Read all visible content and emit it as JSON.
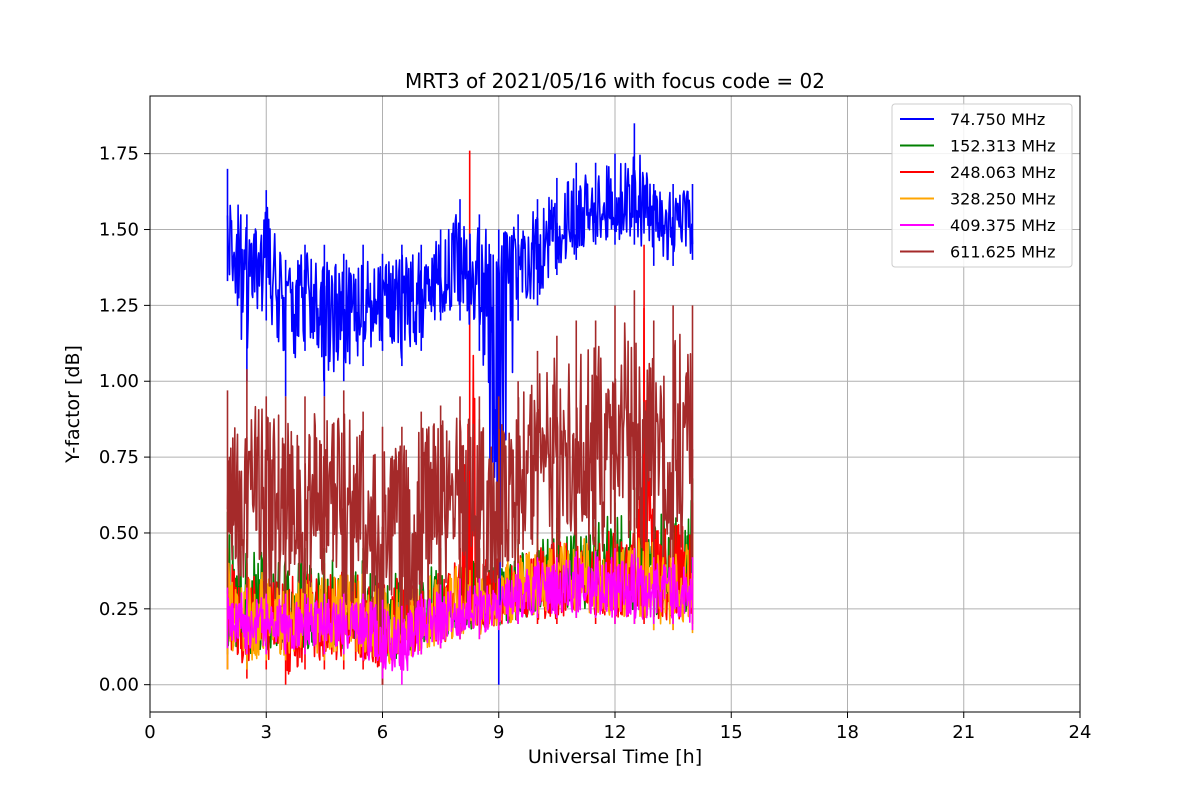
{
  "chart_data": {
    "type": "line",
    "title": "MRT3 of 2021/05/16 with focus code = 02",
    "xlabel": "Universal Time [h]",
    "ylabel": "Y-factor [dB]",
    "xlim": [
      0,
      24
    ],
    "ylim": [
      -0.09,
      1.94
    ],
    "xticks": [
      0,
      3,
      6,
      9,
      12,
      15,
      18,
      21,
      24
    ],
    "xtick_labels": [
      "0",
      "3",
      "6",
      "9",
      "12",
      "15",
      "18",
      "21",
      "24"
    ],
    "yticks": [
      0.0,
      0.25,
      0.5,
      0.75,
      1.0,
      1.25,
      1.5,
      1.75
    ],
    "ytick_labels": [
      "0.00",
      "0.25",
      "0.50",
      "0.75",
      "1.00",
      "1.25",
      "1.50",
      "1.75"
    ],
    "grid": true,
    "legend_position": "top-right",
    "series": [
      {
        "name": " 74.750 MHz",
        "color": "#0000ff",
        "x": [
          2.0,
          2.5,
          3.0,
          3.5,
          4.0,
          4.5,
          5.0,
          5.5,
          6.0,
          6.5,
          7.0,
          7.5,
          8.0,
          8.5,
          9.0,
          9.5,
          10.0,
          10.5,
          11.0,
          11.5,
          12.0,
          12.5,
          13.0,
          13.5,
          14.0
        ],
        "y": [
          1.45,
          1.35,
          1.4,
          1.25,
          1.3,
          1.2,
          1.3,
          1.25,
          1.28,
          1.22,
          1.3,
          1.35,
          1.38,
          1.3,
          1.35,
          1.4,
          1.42,
          1.48,
          1.52,
          1.55,
          1.55,
          1.58,
          1.5,
          1.5,
          1.55
        ],
        "y_min": [
          1.33,
          1.0,
          1.2,
          0.95,
          1.1,
          0.95,
          1.0,
          1.05,
          1.1,
          1.05,
          1.1,
          1.2,
          1.2,
          1.1,
          0.0,
          1.2,
          1.25,
          1.35,
          1.4,
          1.45,
          1.45,
          1.45,
          1.38,
          1.38,
          1.4
        ],
        "y_max": [
          1.7,
          1.55,
          1.63,
          1.4,
          1.45,
          1.45,
          1.42,
          1.45,
          1.42,
          1.45,
          1.45,
          1.5,
          1.6,
          1.55,
          1.5,
          1.55,
          1.6,
          1.67,
          1.72,
          1.72,
          1.75,
          1.85,
          1.65,
          1.65,
          1.65
        ]
      },
      {
        "name": "152.313 MHz",
        "color": "#008000",
        "x": [
          2.0,
          2.5,
          3.0,
          3.5,
          4.0,
          4.5,
          5.0,
          5.5,
          6.0,
          6.5,
          7.0,
          7.5,
          8.0,
          8.5,
          9.0,
          9.5,
          10.0,
          10.5,
          11.0,
          11.5,
          12.0,
          12.5,
          13.0,
          13.5,
          14.0
        ],
        "y": [
          0.3,
          0.22,
          0.2,
          0.2,
          0.2,
          0.2,
          0.22,
          0.22,
          0.2,
          0.2,
          0.22,
          0.25,
          0.25,
          0.25,
          0.25,
          0.28,
          0.3,
          0.32,
          0.33,
          0.35,
          0.35,
          0.35,
          0.35,
          0.35,
          0.38
        ],
        "y_min": [
          0.1,
          0.05,
          0.1,
          0.1,
          0.1,
          0.1,
          0.1,
          0.1,
          0.05,
          0.05,
          0.12,
          0.15,
          0.15,
          0.18,
          0.18,
          0.2,
          0.22,
          0.22,
          0.23,
          0.23,
          0.22,
          0.22,
          0.2,
          0.2,
          0.2
        ],
        "y_max": [
          0.57,
          0.48,
          0.5,
          0.45,
          0.45,
          0.45,
          0.45,
          0.45,
          0.4,
          0.4,
          0.42,
          0.45,
          0.45,
          0.45,
          0.45,
          0.48,
          0.5,
          0.55,
          0.55,
          0.6,
          0.6,
          0.65,
          0.6,
          0.6,
          0.68
        ]
      },
      {
        "name": "248.063 MHz",
        "color": "#ff0000",
        "x": [
          2.0,
          2.5,
          3.0,
          3.5,
          4.0,
          4.5,
          5.0,
          5.5,
          6.0,
          6.5,
          7.0,
          7.5,
          8.0,
          8.25,
          8.5,
          9.0,
          9.5,
          10.0,
          10.5,
          11.0,
          11.5,
          12.0,
          12.5,
          12.75,
          13.0,
          13.5,
          14.0
        ],
        "y": [
          0.3,
          0.2,
          0.2,
          0.18,
          0.2,
          0.2,
          0.22,
          0.2,
          0.18,
          0.18,
          0.2,
          0.22,
          0.25,
          0.3,
          0.25,
          0.25,
          0.28,
          0.3,
          0.32,
          0.33,
          0.33,
          0.33,
          0.35,
          0.35,
          0.35,
          0.35,
          0.38
        ],
        "y_min": [
          0.05,
          0.02,
          0.05,
          0.0,
          0.05,
          0.05,
          0.05,
          0.05,
          0.0,
          0.05,
          0.1,
          0.12,
          0.15,
          0.2,
          0.18,
          0.18,
          0.2,
          0.2,
          0.2,
          0.22,
          0.2,
          0.2,
          0.2,
          0.2,
          0.18,
          0.18,
          0.2
        ],
        "y_max": [
          0.45,
          0.4,
          0.4,
          0.38,
          0.4,
          0.4,
          0.4,
          0.4,
          0.38,
          0.38,
          0.4,
          0.42,
          0.45,
          1.76,
          0.45,
          0.45,
          0.45,
          0.48,
          0.5,
          0.5,
          0.52,
          0.55,
          0.55,
          1.45,
          0.55,
          0.55,
          0.6
        ]
      },
      {
        "name": "328.250 MHz",
        "color": "#ffa500",
        "x": [
          2.0,
          2.5,
          3.0,
          3.5,
          4.0,
          4.5,
          5.0,
          5.5,
          6.0,
          6.5,
          7.0,
          7.5,
          8.0,
          8.5,
          9.0,
          9.5,
          10.0,
          10.5,
          11.0,
          11.5,
          12.0,
          12.5,
          13.0,
          13.5,
          14.0
        ],
        "y": [
          0.25,
          0.2,
          0.2,
          0.18,
          0.2,
          0.2,
          0.2,
          0.2,
          0.18,
          0.18,
          0.2,
          0.22,
          0.25,
          0.25,
          0.25,
          0.28,
          0.3,
          0.32,
          0.33,
          0.33,
          0.33,
          0.33,
          0.32,
          0.32,
          0.35
        ],
        "y_min": [
          0.05,
          0.05,
          0.08,
          0.08,
          0.1,
          0.08,
          0.08,
          0.08,
          0.05,
          0.05,
          0.1,
          0.12,
          0.15,
          0.15,
          0.18,
          0.2,
          0.22,
          0.22,
          0.22,
          0.22,
          0.2,
          0.2,
          0.18,
          0.18,
          0.17
        ],
        "y_max": [
          0.45,
          0.4,
          0.4,
          0.38,
          0.38,
          0.38,
          0.4,
          0.4,
          0.35,
          0.35,
          0.38,
          0.4,
          0.42,
          0.42,
          0.42,
          0.45,
          0.48,
          0.5,
          0.5,
          0.52,
          0.52,
          0.52,
          0.5,
          0.5,
          0.5
        ]
      },
      {
        "name": "409.375 MHz",
        "color": "#ff00ff",
        "x": [
          2.0,
          2.5,
          3.0,
          3.5,
          4.0,
          4.5,
          5.0,
          5.5,
          6.0,
          6.5,
          7.0,
          7.5,
          8.0,
          8.5,
          9.0,
          9.5,
          10.0,
          10.5,
          11.0,
          11.5,
          12.0,
          12.5,
          13.0,
          13.5,
          14.0
        ],
        "y": [
          0.22,
          0.22,
          0.2,
          0.18,
          0.2,
          0.2,
          0.2,
          0.2,
          0.15,
          0.12,
          0.2,
          0.22,
          0.25,
          0.25,
          0.25,
          0.28,
          0.3,
          0.3,
          0.32,
          0.32,
          0.32,
          0.32,
          0.3,
          0.3,
          0.3
        ],
        "y_min": [
          0.12,
          0.1,
          0.1,
          0.1,
          0.1,
          0.1,
          0.1,
          0.08,
          0.02,
          0.0,
          0.1,
          0.12,
          0.15,
          0.15,
          0.18,
          0.2,
          0.22,
          0.22,
          0.22,
          0.22,
          0.2,
          0.2,
          0.2,
          0.2,
          0.18
        ],
        "y_max": [
          0.32,
          0.32,
          0.3,
          0.3,
          0.3,
          0.3,
          0.3,
          0.3,
          0.28,
          0.26,
          0.3,
          0.33,
          0.35,
          0.35,
          0.35,
          0.4,
          0.42,
          0.42,
          0.44,
          0.44,
          0.45,
          0.45,
          0.42,
          0.42,
          0.42
        ]
      },
      {
        "name": "611.625 MHz",
        "color": "#a52a2a",
        "x": [
          2.0,
          2.5,
          3.0,
          3.5,
          4.0,
          4.5,
          5.0,
          5.5,
          6.0,
          6.5,
          7.0,
          7.5,
          8.0,
          8.5,
          9.0,
          9.5,
          10.0,
          10.5,
          11.0,
          11.5,
          12.0,
          12.5,
          13.0,
          13.5,
          14.0
        ],
        "y": [
          0.65,
          0.62,
          0.6,
          0.6,
          0.58,
          0.6,
          0.58,
          0.55,
          0.45,
          0.45,
          0.55,
          0.6,
          0.6,
          0.55,
          0.6,
          0.65,
          0.7,
          0.72,
          0.75,
          0.75,
          0.78,
          0.78,
          0.75,
          0.75,
          0.75
        ],
        "y_min": [
          0.3,
          0.25,
          0.2,
          0.25,
          0.25,
          0.25,
          0.2,
          0.2,
          0.0,
          0.1,
          0.15,
          0.2,
          0.2,
          0.25,
          0.25,
          0.3,
          0.35,
          0.35,
          0.38,
          0.38,
          0.38,
          0.4,
          0.35,
          0.35,
          0.35
        ],
        "y_max": [
          0.97,
          1.04,
          0.95,
          0.95,
          0.95,
          0.95,
          0.97,
          0.9,
          0.85,
          0.85,
          0.9,
          0.92,
          0.95,
          0.95,
          0.95,
          1.0,
          1.1,
          1.15,
          1.2,
          1.2,
          1.25,
          1.3,
          1.2,
          1.25,
          1.25
        ]
      }
    ]
  }
}
